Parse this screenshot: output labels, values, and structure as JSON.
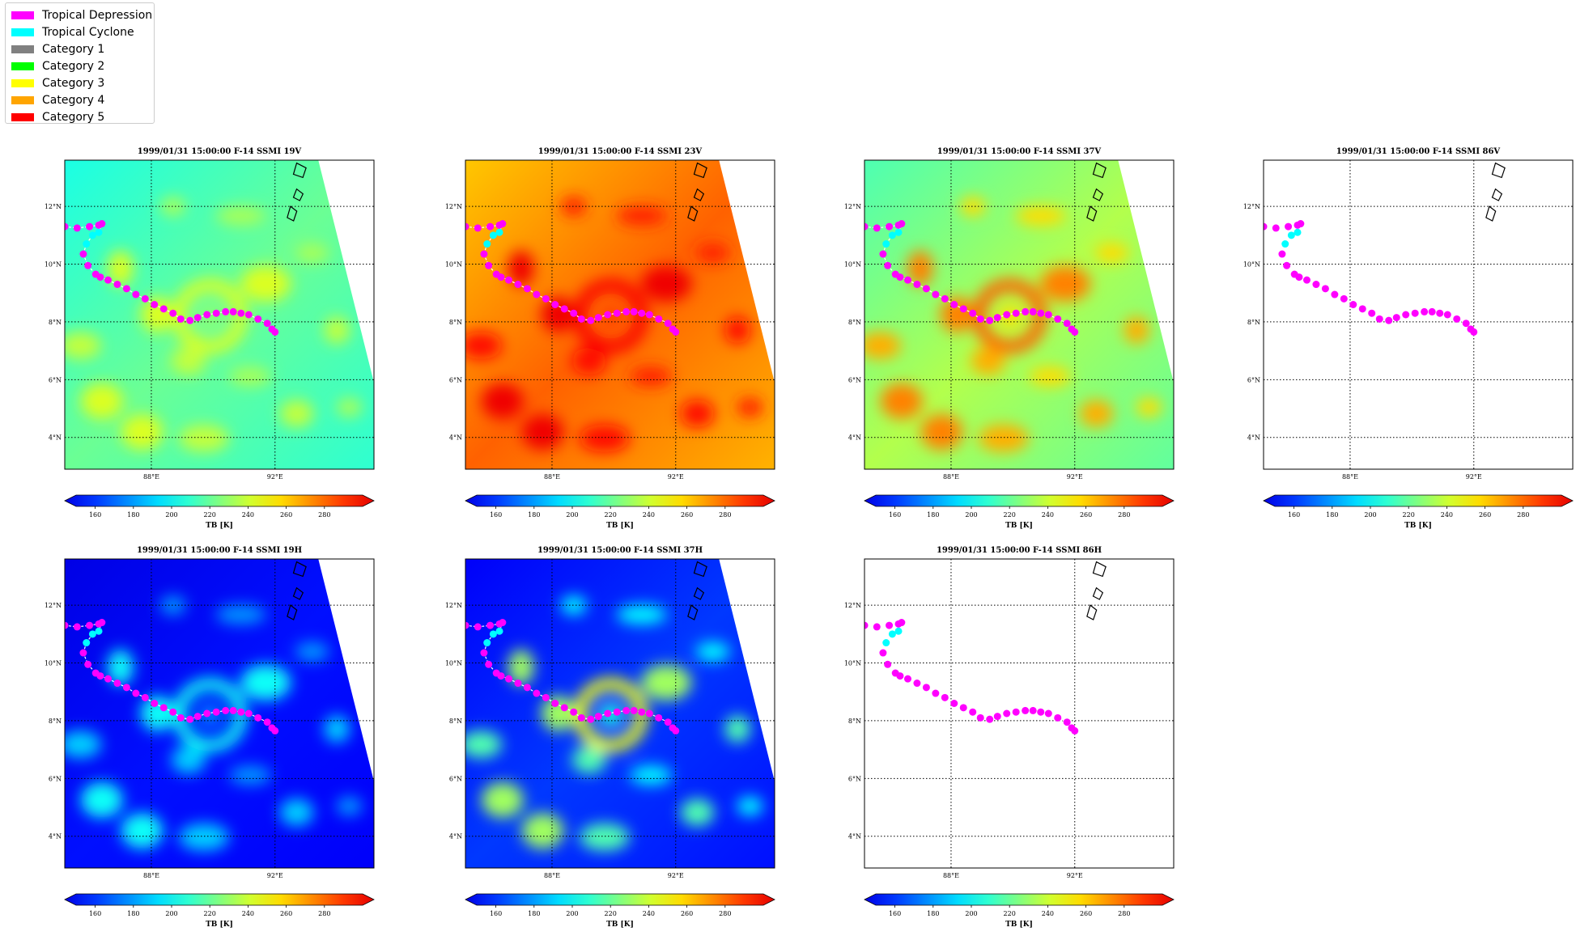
{
  "legend": {
    "items": [
      {
        "label": "Tropical Depression",
        "color": "#ff00ff"
      },
      {
        "label": "Tropical Cyclone",
        "color": "#00ffff"
      },
      {
        "label": "Category 1",
        "color": "#808080"
      },
      {
        "label": "Category 2",
        "color": "#00ff00"
      },
      {
        "label": "Category 3",
        "color": "#ffff00"
      },
      {
        "label": "Category 4",
        "color": "#ffa500"
      },
      {
        "label": "Category 5",
        "color": "#ff0000"
      }
    ]
  },
  "chart_data": [
    {
      "type": "heatmap",
      "title": "1999/01/31 15:00:00  F-14 SSMI 19V",
      "field": "19V",
      "has_data": true,
      "colorbar_label": "TB [K]"
    },
    {
      "type": "heatmap",
      "title": "1999/01/31 15:00:00  F-14 SSMI 23V",
      "field": "23V",
      "has_data": true,
      "colorbar_label": "TB [K]"
    },
    {
      "type": "heatmap",
      "title": "1999/01/31 15:00:00  F-14 SSMI 37V",
      "field": "37V",
      "has_data": true,
      "colorbar_label": "TB [K]"
    },
    {
      "type": "heatmap",
      "title": "1999/01/31 15:00:00  F-14 SSMI 86V",
      "field": "86V",
      "has_data": false,
      "colorbar_label": "TB [K]"
    },
    {
      "type": "heatmap",
      "title": "1999/01/31 15:00:00  F-14 SSMI 19H",
      "field": "19H",
      "has_data": true,
      "colorbar_label": "TB [K]"
    },
    {
      "type": "heatmap",
      "title": "1999/01/31 15:00:00  F-14 SSMI 37H",
      "field": "37H",
      "has_data": true,
      "colorbar_label": "TB [K]"
    },
    {
      "type": "heatmap",
      "title": "1999/01/31 15:00:00  F-14 SSMI 86H",
      "field": "86H",
      "has_data": false,
      "colorbar_label": "TB [K]"
    }
  ],
  "map": {
    "xlim": [
      85.2,
      95.2
    ],
    "ylim": [
      2.9,
      13.6
    ],
    "lon_ticks": [
      {
        "value": 88,
        "label": "88°E"
      },
      {
        "value": 92,
        "label": "92°E"
      }
    ],
    "lat_ticks": [
      {
        "value": 4,
        "label": "4°N"
      },
      {
        "value": 6,
        "label": "6°N"
      },
      {
        "value": 8,
        "label": "8°N"
      },
      {
        "value": 10,
        "label": "10°N"
      },
      {
        "value": 12,
        "label": "12°N"
      }
    ]
  },
  "colorbar": {
    "range": [
      150,
      300
    ],
    "ticks": [
      "160",
      "180",
      "200",
      "220",
      "240",
      "260",
      "280"
    ],
    "label": "TB [K]"
  },
  "track": [
    {
      "lon": 85.2,
      "lat": 11.3,
      "type": "Tropical Depression"
    },
    {
      "lon": 85.6,
      "lat": 11.25,
      "type": "Tropical Depression"
    },
    {
      "lon": 86.0,
      "lat": 11.3,
      "type": "Tropical Depression"
    },
    {
      "lon": 86.3,
      "lat": 11.35,
      "type": "Tropical Depression"
    },
    {
      "lon": 86.4,
      "lat": 11.4,
      "type": "Tropical Depression"
    },
    {
      "lon": 86.3,
      "lat": 11.1,
      "type": "Tropical Cyclone"
    },
    {
      "lon": 86.1,
      "lat": 11.0,
      "type": "Tropical Cyclone"
    },
    {
      "lon": 85.9,
      "lat": 10.7,
      "type": "Tropical Cyclone"
    },
    {
      "lon": 85.8,
      "lat": 10.35,
      "type": "Tropical Depression"
    },
    {
      "lon": 85.95,
      "lat": 9.95,
      "type": "Tropical Depression"
    },
    {
      "lon": 86.2,
      "lat": 9.65,
      "type": "Tropical Depression"
    },
    {
      "lon": 86.35,
      "lat": 9.55,
      "type": "Tropical Depression"
    },
    {
      "lon": 86.6,
      "lat": 9.45,
      "type": "Tropical Depression"
    },
    {
      "lon": 86.9,
      "lat": 9.3,
      "type": "Tropical Depression"
    },
    {
      "lon": 87.2,
      "lat": 9.15,
      "type": "Tropical Depression"
    },
    {
      "lon": 87.5,
      "lat": 8.95,
      "type": "Tropical Depression"
    },
    {
      "lon": 87.8,
      "lat": 8.8,
      "type": "Tropical Depression"
    },
    {
      "lon": 88.1,
      "lat": 8.6,
      "type": "Tropical Depression"
    },
    {
      "lon": 88.4,
      "lat": 8.45,
      "type": "Tropical Depression"
    },
    {
      "lon": 88.7,
      "lat": 8.3,
      "type": "Tropical Depression"
    },
    {
      "lon": 88.95,
      "lat": 8.1,
      "type": "Tropical Depression"
    },
    {
      "lon": 89.25,
      "lat": 8.05,
      "type": "Tropical Depression"
    },
    {
      "lon": 89.5,
      "lat": 8.15,
      "type": "Tropical Depression"
    },
    {
      "lon": 89.8,
      "lat": 8.25,
      "type": "Tropical Depression"
    },
    {
      "lon": 90.1,
      "lat": 8.3,
      "type": "Tropical Depression"
    },
    {
      "lon": 90.4,
      "lat": 8.35,
      "type": "Tropical Depression"
    },
    {
      "lon": 90.65,
      "lat": 8.35,
      "type": "Tropical Depression"
    },
    {
      "lon": 90.9,
      "lat": 8.3,
      "type": "Tropical Depression"
    },
    {
      "lon": 91.15,
      "lat": 8.25,
      "type": "Tropical Depression"
    },
    {
      "lon": 91.45,
      "lat": 8.1,
      "type": "Tropical Depression"
    },
    {
      "lon": 91.75,
      "lat": 7.95,
      "type": "Tropical Depression"
    },
    {
      "lon": 91.9,
      "lat": 7.75,
      "type": "Tropical Depression"
    },
    {
      "lon": 92.0,
      "lat": 7.65,
      "type": "Tropical Depression"
    }
  ]
}
